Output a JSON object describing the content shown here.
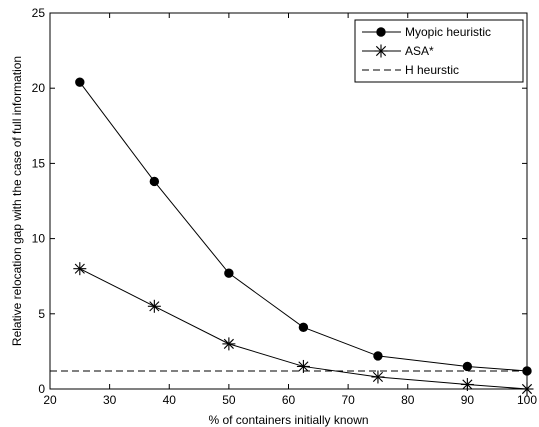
{
  "chart_data": {
    "type": "line",
    "title": "",
    "xlabel": "% of containers initially known",
    "ylabel": "Relative relocation gap with the case of full information",
    "xlim": [
      20,
      100
    ],
    "ylim": [
      0,
      25
    ],
    "xticks": [
      20,
      30,
      40,
      50,
      60,
      70,
      80,
      90,
      100
    ],
    "yticks": [
      0,
      5,
      10,
      15,
      20,
      25
    ],
    "grid": false,
    "legend_position": "top-right",
    "series": [
      {
        "name": "Myopic heuristic",
        "marker": "filled-circle",
        "line": "solid",
        "color": "#000000",
        "x": [
          25,
          37.5,
          50,
          62.5,
          75,
          90,
          100
        ],
        "y": [
          20.4,
          13.8,
          7.7,
          4.1,
          2.2,
          1.5,
          1.2
        ]
      },
      {
        "name": "ASA*",
        "marker": "asterisk",
        "line": "solid",
        "color": "#000000",
        "x": [
          25,
          37.5,
          50,
          62.5,
          75,
          90,
          100
        ],
        "y": [
          8.0,
          5.5,
          3.0,
          1.5,
          0.8,
          0.3,
          0.0
        ]
      },
      {
        "name": "H heurstic",
        "marker": "none",
        "line": "dashed",
        "color": "#000000",
        "x": [
          20,
          100
        ],
        "y": [
          1.2,
          1.2
        ]
      }
    ]
  }
}
